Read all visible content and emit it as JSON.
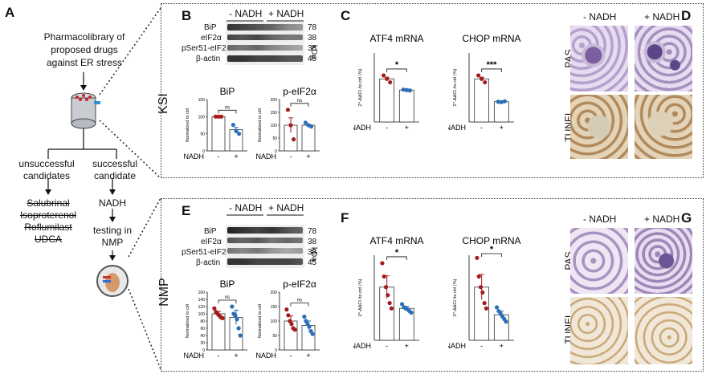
{
  "panel_a": {
    "letter": "A",
    "title_lines": [
      "Pharmacolibrary of",
      "proposed drugs",
      "against ER stress"
    ],
    "unsuccessful_label": [
      "unsuccessful",
      "candidates"
    ],
    "successful_label": [
      "successful",
      "candidate"
    ],
    "failed_drugs": [
      "Salubrinal",
      "Isoproterenol",
      "Roflumilast",
      "UDCA"
    ],
    "winner": "NADH",
    "testing_label": [
      "testing in",
      "NMP"
    ]
  },
  "rows": {
    "top": "KSI",
    "bottom": "NMP"
  },
  "blot_labels": {
    "minus": "- NADH",
    "plus": "+ NADH",
    "proteins": [
      "BiP",
      "eIF2α",
      "pSer51-eIF2α",
      "β-actin"
    ],
    "kda": [
      "78",
      "38",
      "38",
      "45"
    ],
    "kda_unit": "kDa"
  },
  "panel_letters": {
    "b": "B",
    "c": "C",
    "d": "D",
    "e": "E",
    "f": "F",
    "g": "G"
  },
  "histology": {
    "minus": "- NADH",
    "plus": "+ NADH",
    "stains": [
      "PAS",
      "TUNEL"
    ]
  },
  "chart_data": [
    {
      "id": "B-BiP",
      "type": "bar",
      "title": "BiP",
      "ylabel": "Normalized to ctrl",
      "ylim": [
        0,
        150
      ],
      "yticks": [
        0,
        50,
        100,
        150
      ],
      "categories": [
        "-",
        "+"
      ],
      "values": [
        100,
        62
      ],
      "xlabel": "NADH",
      "significance": "ns",
      "points": [
        [
          100,
          100,
          100
        ],
        [
          76,
          58,
          50
        ]
      ]
    },
    {
      "id": "B-peIF2a",
      "type": "bar",
      "title": "p-eIF2α",
      "ylabel": "Normalized to ctrl",
      "ylim": [
        0,
        200
      ],
      "yticks": [
        0,
        50,
        100,
        150,
        200
      ],
      "categories": [
        "-",
        "+"
      ],
      "values": [
        100,
        100
      ],
      "xlabel": "NADH",
      "significance": "ns",
      "points": [
        [
          160,
          100,
          45
        ],
        [
          110,
          100,
          95
        ]
      ]
    },
    {
      "id": "C-ATF4",
      "type": "bar",
      "title": "ATF4 mRNA",
      "ylabel": "2^-ΔΔCt /to ctrl (%)",
      "categories": [
        "-",
        "+"
      ],
      "values": [
        100,
        74
      ],
      "xlabel": "NADH",
      "significance": "*",
      "points": [
        [
          108,
          100,
          92
        ],
        [
          75,
          74,
          73
        ]
      ]
    },
    {
      "id": "C-CHOP",
      "type": "bar",
      "title": "CHOP mRNA",
      "ylabel": "2^-ΔΔCt /to ctrl (%)",
      "categories": [
        "-",
        "+"
      ],
      "values": [
        100,
        47
      ],
      "xlabel": "NADH",
      "significance": "***",
      "points": [
        [
          108,
          100,
          92
        ],
        [
          47,
          46,
          48
        ]
      ]
    },
    {
      "id": "E-BiP",
      "type": "bar",
      "title": "BiP",
      "ylabel": "Normalized to ctrl",
      "ylim": [
        0,
        160
      ],
      "yticks": [
        0,
        20,
        40,
        60,
        80,
        100,
        120,
        140,
        160
      ],
      "categories": [
        "-",
        "+"
      ],
      "values": [
        100,
        90
      ],
      "xlabel": "NADH",
      "significance": "ns",
      "points": [
        [
          115,
          105,
          100,
          95,
          90,
          88
        ],
        [
          120,
          100,
          95,
          85,
          60,
          40
        ]
      ]
    },
    {
      "id": "E-peIF2a",
      "type": "bar",
      "title": "p-eIF2α",
      "ylabel": "Normalized to ctrl",
      "ylim": [
        0,
        200
      ],
      "yticks": [
        0,
        50,
        100,
        150,
        200
      ],
      "categories": [
        "-",
        "+"
      ],
      "values": [
        100,
        85
      ],
      "xlabel": "NADH",
      "significance": "ns",
      "points": [
        [
          140,
          120,
          100,
          90,
          75,
          70
        ],
        [
          115,
          100,
          90,
          80,
          65,
          55
        ]
      ]
    },
    {
      "id": "F-ATF4",
      "type": "bar",
      "title": "ATF4 mRNA",
      "ylabel": "2^-ΔΔCt /to ctrl (%)",
      "categories": [
        "-",
        "+"
      ],
      "values": [
        100,
        60
      ],
      "xlabel": "NADH",
      "significance": "*",
      "points": [
        [
          145,
          120,
          100,
          85,
          70,
          60
        ],
        [
          68,
          62,
          60,
          58,
          55,
          52
        ]
      ]
    },
    {
      "id": "F-CHOP",
      "type": "bar",
      "title": "CHOP mRNA",
      "ylabel": "2^-ΔΔCt /to ctrl (%)",
      "categories": [
        "-",
        "+"
      ],
      "values": [
        100,
        48
      ],
      "xlabel": "NADH",
      "significance": "*",
      "points": [
        [
          155,
          120,
          100,
          90,
          70,
          60
        ],
        [
          62,
          55,
          50,
          45,
          40,
          35
        ]
      ]
    }
  ]
}
